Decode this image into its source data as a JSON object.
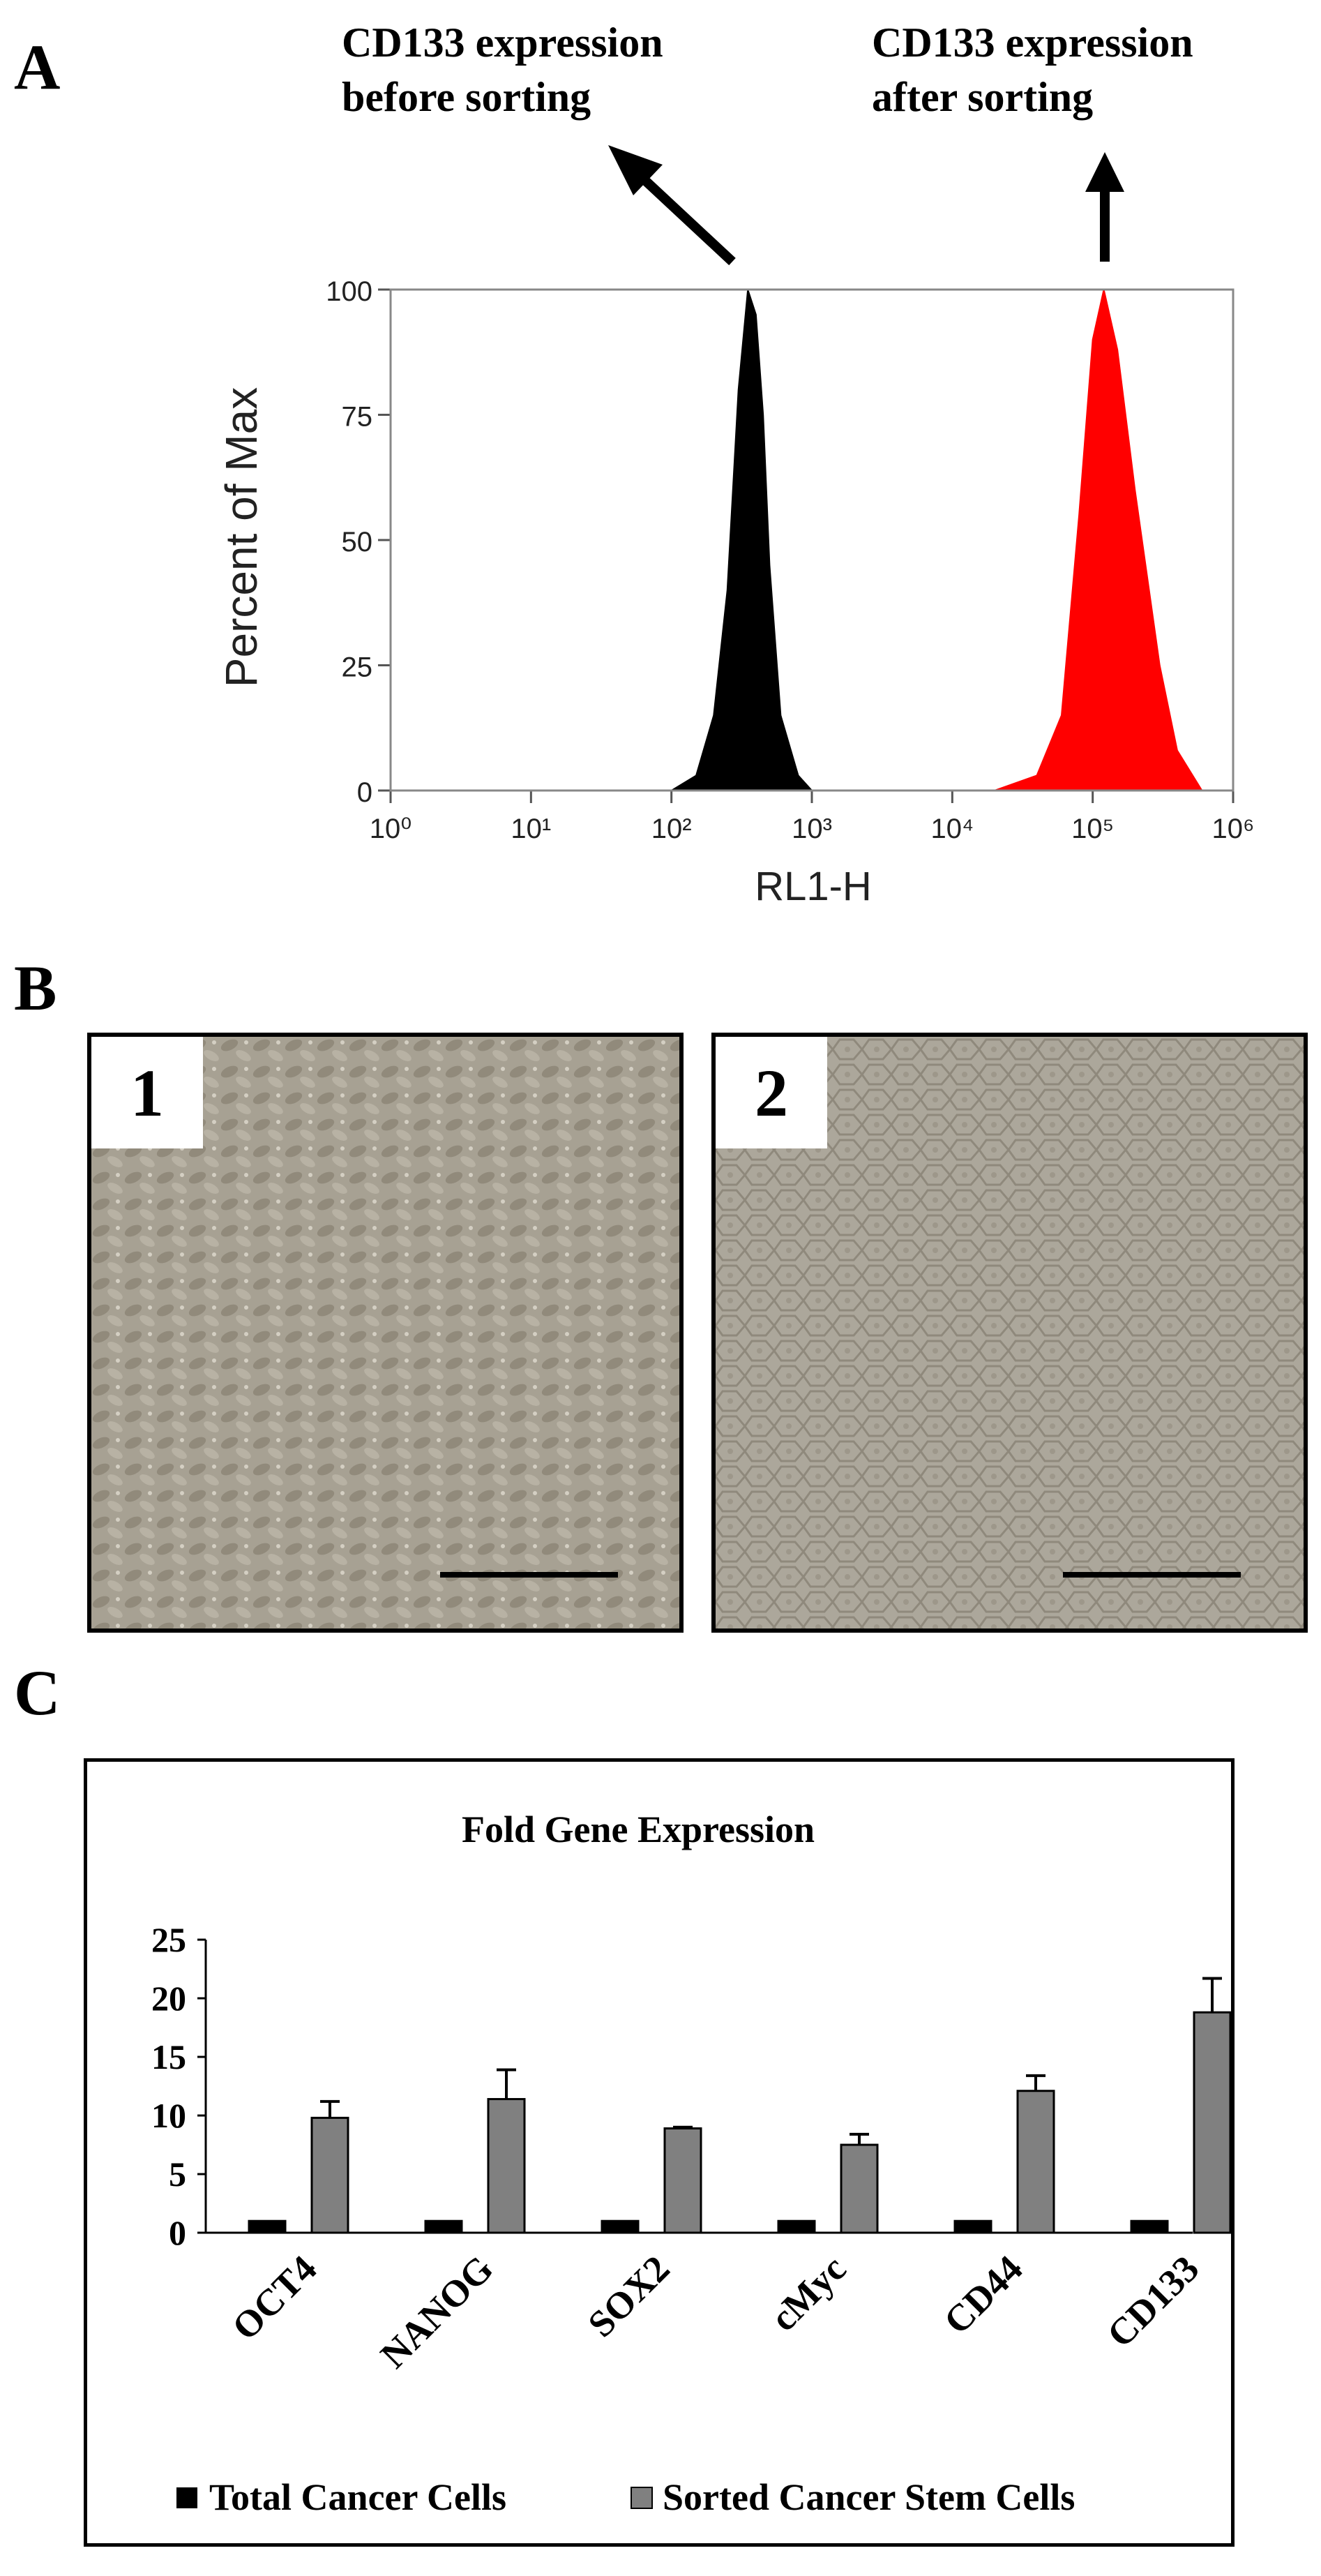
{
  "panels": {
    "a": "A",
    "b": "B",
    "c": "C"
  },
  "panel_a": {
    "arrow_left_label": [
      "CD133 expression",
      "before sorting"
    ],
    "arrow_right_label": [
      "CD133 expression",
      "after sorting"
    ],
    "colors": {
      "before": "#000000",
      "after": "#ff0000"
    }
  },
  "panel_b": {
    "image1_label": "1",
    "image2_label": "2"
  },
  "chart_data": [
    {
      "type": "area",
      "xlabel": "RL1-H",
      "ylabel": "Percent of Max",
      "x_scale": "log",
      "xlim": [
        1,
        1000000
      ],
      "ylim": [
        0,
        100
      ],
      "x_ticks": [
        "10⁰",
        "10¹",
        "10²",
        "10³",
        "10⁴",
        "10⁵",
        "10⁶"
      ],
      "y_ticks": [
        "0",
        "25",
        "50",
        "75",
        "100"
      ],
      "series": [
        {
          "color": "#000000",
          "x": [
            100,
            150,
            200,
            250,
            300,
            350,
            400,
            450,
            500,
            600,
            800,
            1000
          ],
          "y": [
            0,
            3,
            15,
            40,
            80,
            100,
            95,
            75,
            45,
            15,
            3,
            0
          ]
        },
        {
          "color": "#ff0000",
          "x": [
            20000,
            40000,
            60000,
            80000,
            100000,
            120000,
            150000,
            200000,
            300000,
            400000,
            600000
          ],
          "y": [
            0,
            3,
            15,
            55,
            90,
            100,
            88,
            60,
            25,
            8,
            0
          ]
        }
      ]
    },
    {
      "type": "bar",
      "title": "Fold Gene Expression",
      "categories": [
        "OCT4",
        "NANOG",
        "SOX2",
        "cMyc",
        "CD44",
        "CD133"
      ],
      "ylim": [
        0,
        25
      ],
      "y_ticks": [
        "0",
        "5",
        "10",
        "15",
        "20",
        "25"
      ],
      "legend_position": "bottom",
      "series": [
        {
          "name": "Total Cancer Cells",
          "color": "#000000",
          "values": [
            1,
            1,
            1,
            1,
            1,
            1
          ],
          "errors": [
            0,
            0,
            0,
            0,
            0,
            0
          ]
        },
        {
          "name": "Sorted Cancer Stem Cells",
          "color": "#808080",
          "values": [
            9.8,
            11.4,
            8.9,
            7.5,
            12.1,
            18.8
          ],
          "errors": [
            1.4,
            2.5,
            0.1,
            0.9,
            1.3,
            2.9
          ]
        }
      ]
    }
  ]
}
